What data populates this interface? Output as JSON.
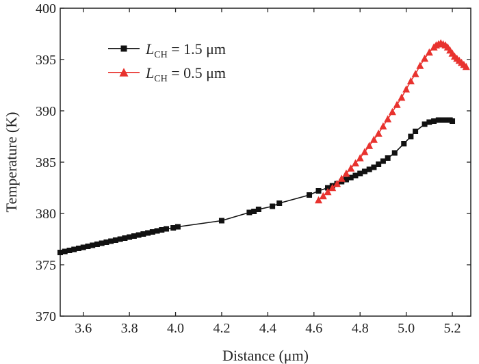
{
  "chart_data": {
    "type": "line",
    "xlabel": "Distance (μm)",
    "ylabel": "Temperature (K)",
    "xlim": [
      3.5,
      5.28
    ],
    "ylim": [
      370,
      400
    ],
    "xticks": [
      3.6,
      3.8,
      4.0,
      4.2,
      4.4,
      4.6,
      4.8,
      5.0,
      5.2
    ],
    "xtick_labels": [
      "3.6",
      "3.8",
      "4.0",
      "4.2",
      "4.4",
      "4.6",
      "4.8",
      "5.0",
      "5.2"
    ],
    "yticks": [
      370,
      375,
      380,
      385,
      390,
      395,
      400
    ],
    "ytick_labels": [
      "370",
      "375",
      "380",
      "385",
      "390",
      "395",
      "400"
    ],
    "grid": false,
    "legend_position": "top-left",
    "series": [
      {
        "name": "L_CH = 1.5 μm",
        "legend_main": "L",
        "legend_sub": "CH",
        "legend_rest": " = 1.5 μm",
        "color": "#111111",
        "marker": "square",
        "x": [
          3.5,
          3.52,
          3.54,
          3.56,
          3.58,
          3.6,
          3.62,
          3.64,
          3.66,
          3.68,
          3.7,
          3.72,
          3.74,
          3.76,
          3.78,
          3.8,
          3.82,
          3.84,
          3.86,
          3.88,
          3.9,
          3.92,
          3.94,
          3.96,
          3.99,
          4.01,
          4.2,
          4.32,
          4.34,
          4.36,
          4.42,
          4.45,
          4.58,
          4.62,
          4.66,
          4.68,
          4.7,
          4.72,
          4.74,
          4.76,
          4.78,
          4.8,
          4.82,
          4.84,
          4.86,
          4.88,
          4.9,
          4.92,
          4.95,
          4.99,
          5.02,
          5.04,
          5.08,
          5.1,
          5.12,
          5.14,
          5.16,
          5.18,
          5.19,
          5.2
        ],
        "y": [
          376.2,
          376.3,
          376.4,
          376.5,
          376.6,
          376.7,
          376.8,
          376.9,
          377.0,
          377.1,
          377.2,
          377.3,
          377.4,
          377.5,
          377.6,
          377.7,
          377.8,
          377.9,
          378.0,
          378.1,
          378.2,
          378.3,
          378.4,
          378.5,
          378.6,
          378.7,
          379.3,
          380.1,
          380.2,
          380.4,
          380.7,
          381.0,
          381.8,
          382.2,
          382.5,
          382.7,
          382.9,
          383.1,
          383.3,
          383.5,
          383.7,
          383.9,
          384.1,
          384.3,
          384.5,
          384.8,
          385.1,
          385.4,
          385.9,
          386.8,
          387.5,
          388.0,
          388.7,
          388.9,
          389.0,
          389.1,
          389.1,
          389.1,
          389.1,
          389.0
        ]
      },
      {
        "name": "L_CH = 0.5 μm",
        "legend_main": "L",
        "legend_sub": "CH",
        "legend_rest": " = 0.5 μm",
        "color": "#e8322e",
        "marker": "triangle",
        "x": [
          4.62,
          4.64,
          4.66,
          4.68,
          4.7,
          4.72,
          4.74,
          4.76,
          4.78,
          4.8,
          4.82,
          4.84,
          4.86,
          4.88,
          4.9,
          4.92,
          4.94,
          4.96,
          4.98,
          5.0,
          5.02,
          5.04,
          5.06,
          5.08,
          5.1,
          5.12,
          5.13,
          5.14,
          5.15,
          5.16,
          5.17,
          5.18,
          5.19,
          5.2,
          5.21,
          5.22,
          5.23,
          5.24,
          5.25,
          5.26
        ],
        "y": [
          381.3,
          381.7,
          382.1,
          382.5,
          382.9,
          383.4,
          383.9,
          384.4,
          384.9,
          385.4,
          386.0,
          386.6,
          387.2,
          387.8,
          388.5,
          389.2,
          389.9,
          390.6,
          391.3,
          392.1,
          392.9,
          393.6,
          394.4,
          395.1,
          395.7,
          396.2,
          396.4,
          396.5,
          396.6,
          396.5,
          396.4,
          396.2,
          395.9,
          395.6,
          395.3,
          395.1,
          394.9,
          394.7,
          394.5,
          394.3
        ]
      }
    ]
  }
}
